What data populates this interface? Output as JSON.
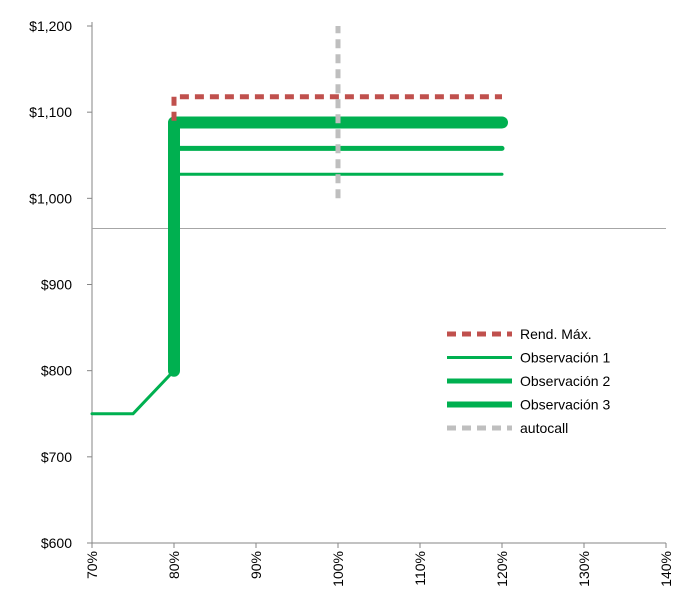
{
  "chart_data": {
    "type": "line",
    "title": "",
    "xlabel": "",
    "ylabel": "",
    "x_ticks": [
      "70%",
      "80%",
      "90%",
      "100%",
      "110%",
      "120%",
      "130%",
      "140%"
    ],
    "y_ticks": [
      "$600",
      "$700",
      "$800",
      "$900",
      "$1,000",
      "$1,100",
      "$1,200"
    ],
    "xlim": [
      70,
      140
    ],
    "ylim": [
      600,
      1200
    ],
    "grid": false,
    "legend_position": "right",
    "reference_line": {
      "y": 965,
      "color": "#a6a6a6"
    },
    "series": [
      {
        "name": "Rend. Máx.",
        "color": "#c0504d",
        "style": "dashed",
        "weight": "medium",
        "points": [
          [
            80,
            1090
          ],
          [
            80,
            1118
          ],
          [
            120,
            1118
          ]
        ]
      },
      {
        "name": "Observación 1",
        "color": "#00b050",
        "style": "solid",
        "weight": "thin",
        "points": [
          [
            70,
            750
          ],
          [
            75,
            750
          ],
          [
            80,
            800
          ],
          [
            80,
            1028
          ],
          [
            120,
            1028
          ]
        ]
      },
      {
        "name": "Observación 2",
        "color": "#00b050",
        "style": "solid",
        "weight": "medium",
        "points": [
          [
            80,
            800
          ],
          [
            80,
            1058
          ],
          [
            120,
            1058
          ]
        ]
      },
      {
        "name": "Observación 3",
        "color": "#00b050",
        "style": "solid",
        "weight": "thick",
        "points": [
          [
            80,
            800
          ],
          [
            80,
            1088
          ],
          [
            120,
            1088
          ]
        ]
      },
      {
        "name": "autocall",
        "color": "#bfbfbf",
        "style": "dashed",
        "weight": "medium",
        "points": [
          [
            100,
            1000
          ],
          [
            100,
            1200
          ]
        ]
      }
    ]
  }
}
